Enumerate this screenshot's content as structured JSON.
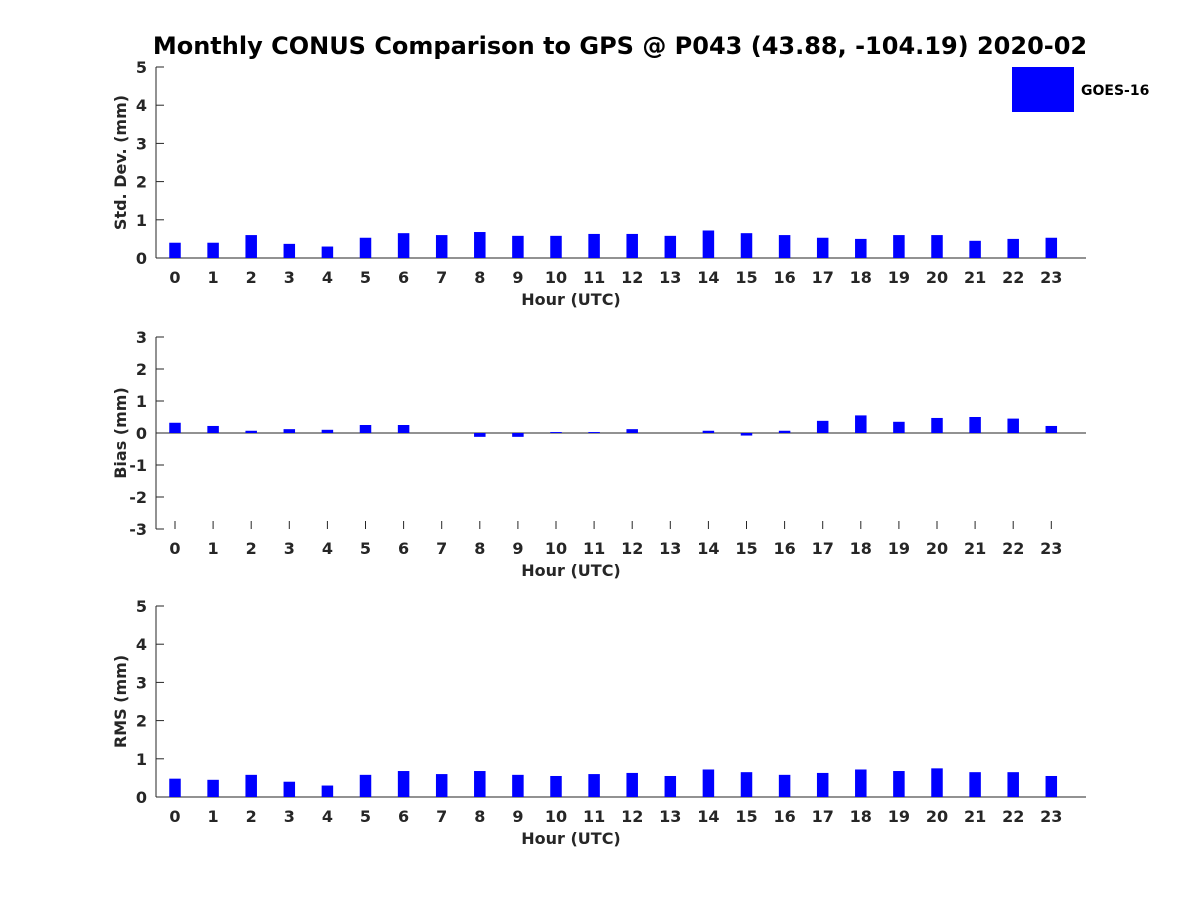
{
  "chart_data": {
    "title": "Monthly CONUS Comparison to GPS @ P043 (43.88, -104.19) 2020-02",
    "legend": {
      "label": "GOES-16",
      "color": "#0000ff",
      "placement": "top-right"
    },
    "panels": [
      {
        "type": "bar",
        "name": "std-dev",
        "ylabel": "Std. Dev. (mm)",
        "xlabel": "Hour (UTC)",
        "ylim": [
          0,
          5
        ],
        "yticks": [
          0,
          1,
          2,
          3,
          4,
          5
        ],
        "categories": [
          "0",
          "1",
          "2",
          "3",
          "4",
          "5",
          "6",
          "7",
          "8",
          "9",
          "10",
          "11",
          "12",
          "13",
          "14",
          "15",
          "16",
          "17",
          "18",
          "19",
          "20",
          "21",
          "22",
          "23"
        ],
        "series": [
          {
            "name": "GOES-16",
            "color": "#0000ff",
            "values": [
              0.4,
              0.4,
              0.6,
              0.37,
              0.3,
              0.53,
              0.65,
              0.6,
              0.68,
              0.58,
              0.58,
              0.63,
              0.63,
              0.58,
              0.72,
              0.65,
              0.6,
              0.53,
              0.5,
              0.6,
              0.6,
              0.45,
              0.5,
              0.53
            ]
          }
        ]
      },
      {
        "type": "bar",
        "name": "bias",
        "ylabel": "Bias (mm)",
        "xlabel": "Hour (UTC)",
        "ylim": [
          -3,
          3
        ],
        "yticks": [
          -3,
          -2,
          -1,
          0,
          1,
          2,
          3
        ],
        "categories": [
          "0",
          "1",
          "2",
          "3",
          "4",
          "5",
          "6",
          "7",
          "8",
          "9",
          "10",
          "11",
          "12",
          "13",
          "14",
          "15",
          "16",
          "17",
          "18",
          "19",
          "20",
          "21",
          "22",
          "23"
        ],
        "series": [
          {
            "name": "GOES-16",
            "color": "#0000ff",
            "values": [
              0.32,
              0.22,
              0.07,
              0.12,
              0.1,
              0.25,
              0.25,
              0.0,
              -0.12,
              -0.12,
              0.03,
              0.03,
              0.12,
              0.0,
              0.07,
              -0.08,
              0.07,
              0.38,
              0.55,
              0.35,
              0.47,
              0.5,
              0.45,
              0.22
            ]
          }
        ]
      },
      {
        "type": "bar",
        "name": "rms",
        "ylabel": "RMS (mm)",
        "xlabel": "Hour (UTC)",
        "ylim": [
          0,
          5
        ],
        "yticks": [
          0,
          1,
          2,
          3,
          4,
          5
        ],
        "categories": [
          "0",
          "1",
          "2",
          "3",
          "4",
          "5",
          "6",
          "7",
          "8",
          "9",
          "10",
          "11",
          "12",
          "13",
          "14",
          "15",
          "16",
          "17",
          "18",
          "19",
          "20",
          "21",
          "22",
          "23"
        ],
        "series": [
          {
            "name": "GOES-16",
            "color": "#0000ff",
            "values": [
              0.48,
              0.45,
              0.58,
              0.4,
              0.3,
              0.58,
              0.68,
              0.6,
              0.68,
              0.58,
              0.55,
              0.6,
              0.63,
              0.55,
              0.72,
              0.65,
              0.58,
              0.63,
              0.72,
              0.68,
              0.75,
              0.65,
              0.65,
              0.55
            ]
          }
        ]
      }
    ]
  }
}
